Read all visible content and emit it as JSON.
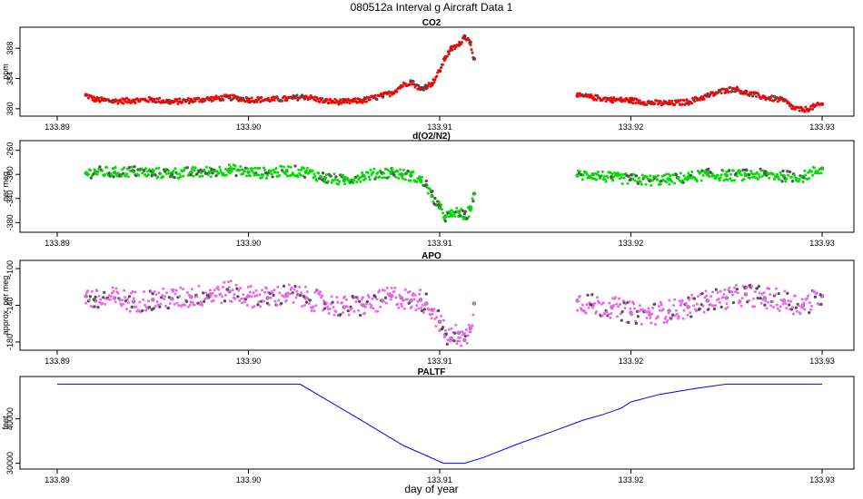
{
  "title": "080512a   Interval g Aircraft Data 1",
  "xlabel": "day of year",
  "chart_data": [
    {
      "type": "scatter",
      "title": "CO2",
      "ylabel": "ppm",
      "color": "#ff0000",
      "xlim": [
        133.89,
        133.93
      ],
      "ylim": [
        379.5,
        390.3
      ],
      "x_ticks": [
        "133.89",
        "133.90",
        "133.91",
        "133.92",
        "133.93"
      ],
      "y_ticks": [
        "380",
        "384",
        "388"
      ],
      "x": [
        133.8915,
        133.892,
        133.893,
        133.894,
        133.895,
        133.896,
        133.897,
        133.898,
        133.899,
        133.9,
        133.901,
        133.902,
        133.903,
        133.904,
        133.905,
        133.906,
        133.907,
        133.9075,
        133.908,
        133.9085,
        133.909,
        133.9093,
        133.9096,
        133.91,
        133.9103,
        133.9106,
        133.911,
        133.9113,
        133.9116,
        133.9118,
        133.9172,
        133.918,
        133.919,
        133.92,
        133.921,
        133.922,
        133.923,
        133.924,
        133.925,
        133.9255,
        133.926,
        133.927,
        133.928,
        133.9285,
        133.929,
        133.93
      ],
      "y": [
        381.8,
        381.2,
        381.0,
        381.1,
        381.2,
        380.9,
        381.1,
        381.3,
        381.5,
        381.2,
        381.2,
        381.3,
        381.6,
        381.0,
        380.9,
        381.1,
        381.7,
        382.1,
        383.0,
        383.6,
        382.6,
        383.0,
        383.3,
        385.0,
        386.8,
        387.9,
        388.4,
        389.6,
        388.8,
        386.6,
        381.7,
        381.5,
        381.2,
        381.1,
        380.8,
        380.7,
        380.9,
        381.7,
        382.5,
        382.6,
        382.1,
        381.5,
        381.1,
        380.1,
        379.8,
        380.6
      ]
    },
    {
      "type": "scatter",
      "title": "d(O2/N2)",
      "ylabel": "per meg",
      "color": "#00dd00",
      "xlim": [
        133.89,
        133.93
      ],
      "ylim": [
        -390,
        -250
      ],
      "x_ticks": [
        "133.89",
        "133.90",
        "133.91",
        "133.92",
        "133.93"
      ],
      "y_ticks": [
        "-380",
        "-340",
        "-300",
        "-260"
      ],
      "x": [
        133.8915,
        133.892,
        133.893,
        133.894,
        133.895,
        133.896,
        133.897,
        133.898,
        133.899,
        133.9,
        133.901,
        133.902,
        133.903,
        133.904,
        133.905,
        133.906,
        133.907,
        133.9075,
        133.908,
        133.9085,
        133.909,
        133.9093,
        133.9096,
        133.91,
        133.9103,
        133.9106,
        133.911,
        133.9113,
        133.9116,
        133.9118,
        133.9172,
        133.918,
        133.919,
        133.92,
        133.921,
        133.922,
        133.923,
        133.924,
        133.925,
        133.926,
        133.927,
        133.928,
        133.929,
        133.93
      ],
      "y": [
        -298,
        -296,
        -297,
        -295,
        -298,
        -298,
        -297,
        -296,
        -292,
        -296,
        -298,
        -294,
        -296,
        -306,
        -310,
        -302,
        -298,
        -296,
        -300,
        -302,
        -310,
        -318,
        -336,
        -355,
        -370,
        -368,
        -362,
        -372,
        -358,
        -332,
        -302,
        -300,
        -306,
        -308,
        -310,
        -308,
        -305,
        -300,
        -302,
        -301,
        -300,
        -303,
        -304,
        -290
      ]
    },
    {
      "type": "scatter",
      "title": "APO",
      "ylabel": "approx. per meg",
      "color": "#ee66ee",
      "xlim": [
        133.89,
        133.93
      ],
      "ylim": [
        -185,
        -95
      ],
      "x_ticks": [
        "133.89",
        "133.90",
        "133.91",
        "133.92",
        "133.93"
      ],
      "y_ticks": [
        "-180",
        "-140",
        "-100"
      ],
      "x": [
        133.8915,
        133.892,
        133.893,
        133.894,
        133.895,
        133.896,
        133.897,
        133.898,
        133.899,
        133.9,
        133.901,
        133.902,
        133.903,
        133.904,
        133.905,
        133.906,
        133.907,
        133.9075,
        133.908,
        133.9085,
        133.909,
        133.9093,
        133.9096,
        133.91,
        133.9103,
        133.9106,
        133.911,
        133.9113,
        133.9116,
        133.9118,
        133.9172,
        133.918,
        133.919,
        133.92,
        133.921,
        133.922,
        133.923,
        133.924,
        133.925,
        133.926,
        133.927,
        133.928,
        133.929,
        133.93
      ],
      "y": [
        -130,
        -135,
        -132,
        -136,
        -134,
        -133,
        -131,
        -128,
        -125,
        -130,
        -132,
        -128,
        -132,
        -138,
        -142,
        -140,
        -135,
        -130,
        -132,
        -135,
        -134,
        -138,
        -145,
        -158,
        -172,
        -176,
        -170,
        -178,
        -165,
        -138,
        -135,
        -140,
        -142,
        -148,
        -150,
        -146,
        -142,
        -135,
        -132,
        -128,
        -132,
        -135,
        -140,
        -130
      ]
    },
    {
      "type": "line",
      "title": "PALTF",
      "ylabel": "feet",
      "color": "#0000ff",
      "xlim": [
        133.89,
        133.93
      ],
      "ylim": [
        29500,
        48700
      ],
      "x_ticks": [
        "133.89",
        "133.90",
        "133.91",
        "133.92",
        "133.93"
      ],
      "y_ticks": [
        "30000",
        "40000"
      ],
      "x": [
        133.89,
        133.9027,
        133.9055,
        133.9081,
        133.9102,
        133.9113,
        133.9123,
        133.914,
        133.916,
        133.9175,
        133.9185,
        133.9195,
        133.92,
        133.9215,
        133.9235,
        133.925,
        133.93
      ],
      "y": [
        47800,
        47800,
        40700,
        34000,
        30000,
        30000,
        31300,
        34200,
        37300,
        39700,
        40900,
        42400,
        43800,
        45500,
        46900,
        47800,
        47800
      ]
    }
  ]
}
